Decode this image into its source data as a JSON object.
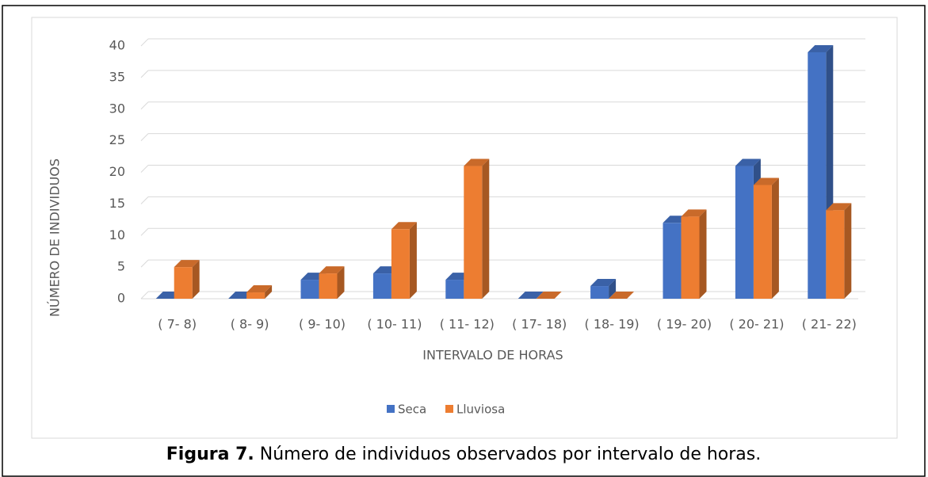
{
  "chart_data": {
    "type": "bar3d",
    "x_label": "INTERVALO DE HORAS",
    "y_label": "NÚMERO DE INDIVIDUOS",
    "categories": [
      "( 7- 8)",
      "( 8- 9)",
      "( 9- 10)",
      "( 10- 11)",
      "( 11- 12)",
      "( 17- 18)",
      "( 18- 19)",
      "( 19- 20)",
      "( 20- 21)",
      "( 21- 22)"
    ],
    "series": [
      {
        "name": "Seca",
        "color": "#4472c4",
        "values": [
          0,
          0,
          3,
          4,
          3,
          0,
          2,
          12,
          21,
          39
        ]
      },
      {
        "name": "Lluviosa",
        "color": "#ed7d31",
        "values": [
          5,
          1,
          4,
          11,
          21,
          0,
          0,
          13,
          18,
          14
        ]
      }
    ],
    "ylim": [
      0,
      40
    ],
    "yticks": [
      0,
      5,
      10,
      15,
      20,
      25,
      30,
      35,
      40
    ],
    "grid": true,
    "legend": "bottom"
  },
  "caption": {
    "label": "Figura 7.",
    "text": "Número de individuos observados por intervalo de horas."
  }
}
